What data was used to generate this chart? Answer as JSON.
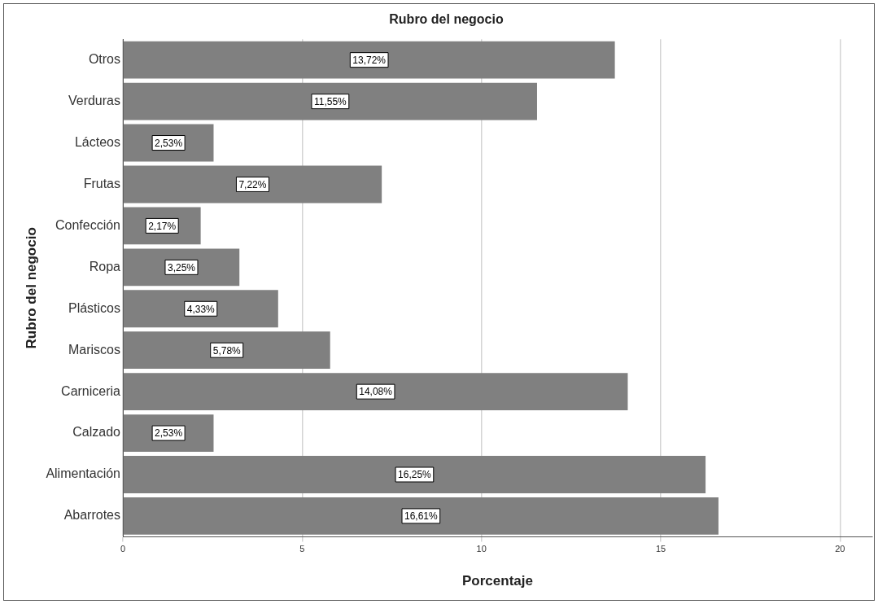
{
  "chart_data": {
    "type": "bar",
    "orientation": "horizontal",
    "title": "Rubro del negocio",
    "xlabel": "Porcentaje",
    "ylabel": "Rubro del negocio",
    "categories": [
      "Otros",
      "Verduras",
      "Lácteos",
      "Frutas",
      "Confección",
      "Ropa",
      "Plásticos",
      "Mariscos",
      "Carniceria",
      "Calzado",
      "Alimentación",
      "Abarrotes"
    ],
    "values": [
      13.72,
      11.55,
      2.53,
      7.22,
      2.17,
      3.25,
      4.33,
      5.78,
      14.08,
      2.53,
      16.25,
      16.61
    ],
    "value_labels": [
      "13,72%",
      "11,55%",
      "2,53%",
      "7,22%",
      "2,17%",
      "3,25%",
      "4,33%",
      "5,78%",
      "14,08%",
      "2,53%",
      "16,25%",
      "16,61%"
    ],
    "color": "#808080",
    "xlim": [
      0,
      20.9
    ],
    "xticks": [
      0,
      5,
      10,
      15,
      20
    ],
    "grid": "x",
    "legend": false
  }
}
